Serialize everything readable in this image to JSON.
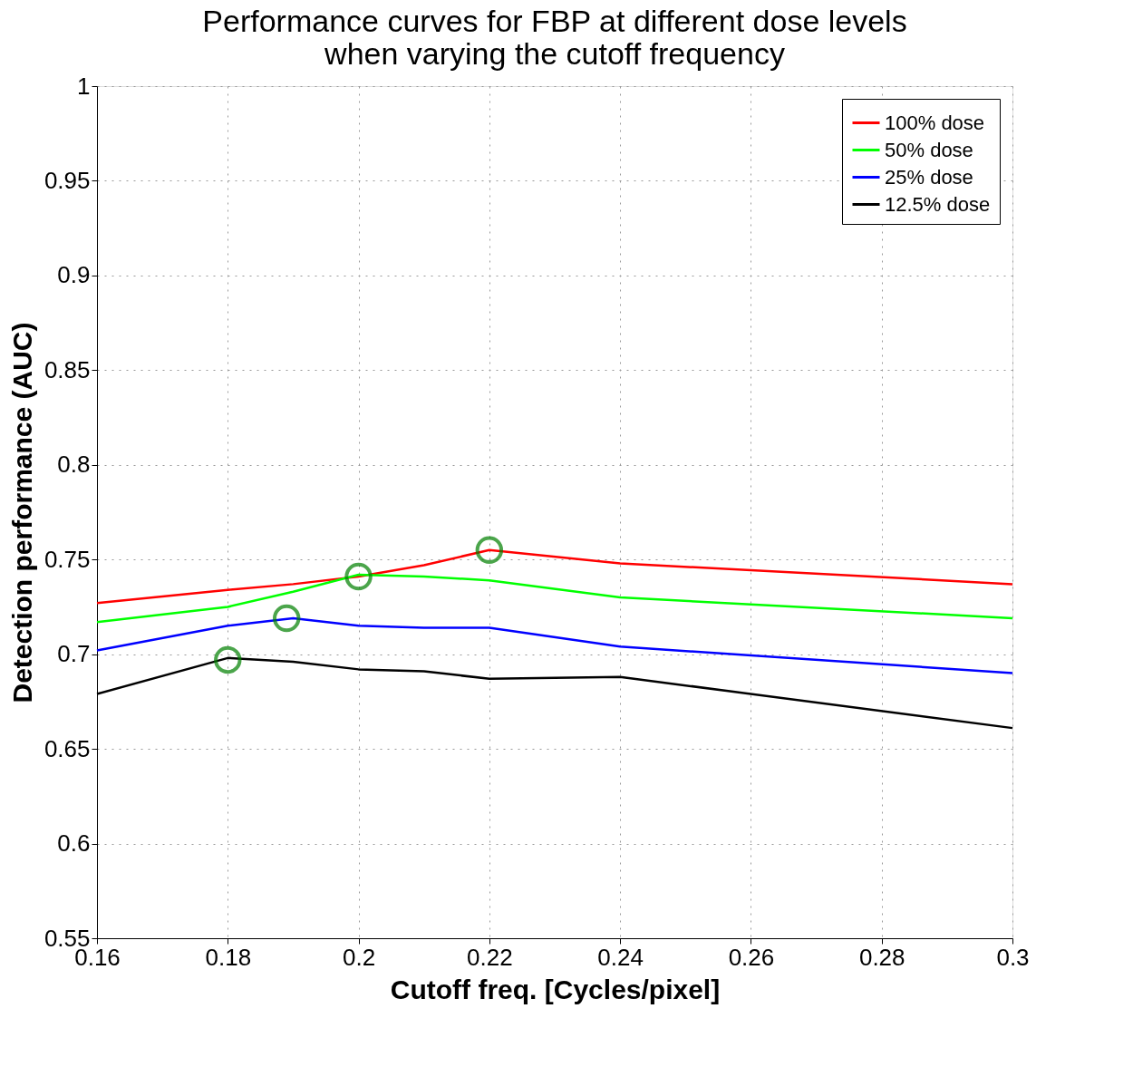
{
  "chart_data": {
    "type": "line",
    "title": [
      "Performance curves for FBP at different dose levels",
      "when varying the cutoff frequency"
    ],
    "xlabel": "Cutoff freq. [Cycles/pixel]",
    "ylabel": "Detection performance (AUC)",
    "x": [
      0.16,
      0.18,
      0.19,
      0.2,
      0.21,
      0.22,
      0.24,
      0.3
    ],
    "series": [
      {
        "name": "100% dose",
        "color": "#ff0000",
        "values": [
          0.727,
          0.734,
          0.737,
          0.741,
          0.747,
          0.755,
          0.748,
          0.737
        ]
      },
      {
        "name": "50% dose",
        "color": "#00ff00",
        "values": [
          0.717,
          0.725,
          0.733,
          0.742,
          0.741,
          0.739,
          0.73,
          0.719
        ]
      },
      {
        "name": "25% dose",
        "color": "#0000ff",
        "values": [
          0.702,
          0.715,
          0.719,
          0.715,
          0.714,
          0.714,
          0.704,
          0.69
        ]
      },
      {
        "name": "12.5% dose",
        "color": "#000000",
        "values": [
          0.679,
          0.698,
          0.696,
          0.692,
          0.691,
          0.687,
          0.688,
          0.661
        ]
      },
      {
        "type": "scatter",
        "marker": "circle",
        "color": "#008000",
        "x": [
          0.18,
          0.189,
          0.2,
          0.22
        ],
        "values": [
          0.697,
          0.719,
          0.741,
          0.755
        ]
      }
    ],
    "xlim": [
      0.16,
      0.3
    ],
    "xticks": [
      0.16,
      0.18,
      0.2,
      0.22,
      0.24,
      0.26,
      0.28,
      0.3
    ],
    "ylim": [
      0.55,
      1
    ],
    "yticks": [
      0.55,
      0.6,
      0.65,
      0.7,
      0.75,
      0.8,
      0.85,
      0.9,
      0.95,
      1
    ],
    "grid": true,
    "legend": "top right",
    "line_style": "solid"
  }
}
